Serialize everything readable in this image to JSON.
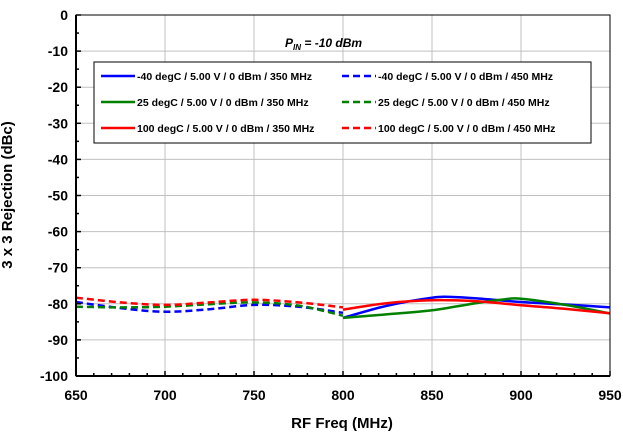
{
  "chart_data": {
    "type": "line",
    "title": "",
    "annotation": {
      "main": "P",
      "sub": "IN",
      "rest": " = -10 dBm"
    },
    "xlabel": "RF  Freq (MHz)",
    "ylabel": "3 x 3 Rejection (dBc)",
    "xlim": [
      650,
      950
    ],
    "ylim": [
      -100,
      0
    ],
    "xticks": [
      650,
      700,
      750,
      800,
      850,
      900,
      950
    ],
    "yticks": [
      0,
      -10,
      -20,
      -30,
      -40,
      -50,
      -60,
      -70,
      -80,
      -90,
      -100
    ],
    "grid": true,
    "legend_position": "top",
    "series": [
      {
        "name": "-40 degC / 5.00 V / 0 dBm / 350 MHz",
        "color": "#0000ff",
        "dash": "solid",
        "x": [
          800,
          825,
          850,
          860,
          875,
          900,
          925,
          950
        ],
        "y": [
          -83.9,
          -80.5,
          -78.3,
          -78.1,
          -78.5,
          -79.5,
          -80.2,
          -81.0
        ]
      },
      {
        "name": "-40 degC / 5.00 V / 0 dBm / 450 MHz",
        "color": "#0000ff",
        "dash": "dashed",
        "x": [
          650,
          675,
          700,
          725,
          750,
          775,
          800
        ],
        "y": [
          -79.5,
          -81.2,
          -82.2,
          -81.5,
          -80.3,
          -80.8,
          -82.5
        ]
      },
      {
        "name": "25 degC / 5.00 V / 0 dBm / 350 MHz",
        "color": "#008000",
        "dash": "solid",
        "x": [
          800,
          825,
          850,
          875,
          890,
          900,
          925,
          950
        ],
        "y": [
          -83.9,
          -82.9,
          -81.8,
          -79.8,
          -78.8,
          -78.6,
          -80.3,
          -82.7
        ]
      },
      {
        "name": "25 degC / 5.00 V / 0 dBm / 450 MHz",
        "color": "#008000",
        "dash": "dashed",
        "x": [
          650,
          675,
          700,
          725,
          750,
          775,
          800
        ],
        "y": [
          -80.8,
          -81.0,
          -80.8,
          -80.1,
          -79.6,
          -80.5,
          -83.3
        ]
      },
      {
        "name": "100 degC / 5.00 V / 0 dBm / 350 MHz",
        "color": "#ff0000",
        "dash": "solid",
        "x": [
          800,
          825,
          850,
          875,
          900,
          925,
          950
        ],
        "y": [
          -81.6,
          -79.8,
          -79.0,
          -79.3,
          -80.4,
          -81.4,
          -82.6
        ]
      },
      {
        "name": "100 degC / 5.00 V / 0 dBm / 450 MHz",
        "color": "#ff0000",
        "dash": "dashed",
        "x": [
          650,
          675,
          700,
          725,
          750,
          775,
          800
        ],
        "y": [
          -78.3,
          -79.6,
          -80.3,
          -79.6,
          -78.9,
          -79.6,
          -81.0
        ]
      }
    ]
  }
}
